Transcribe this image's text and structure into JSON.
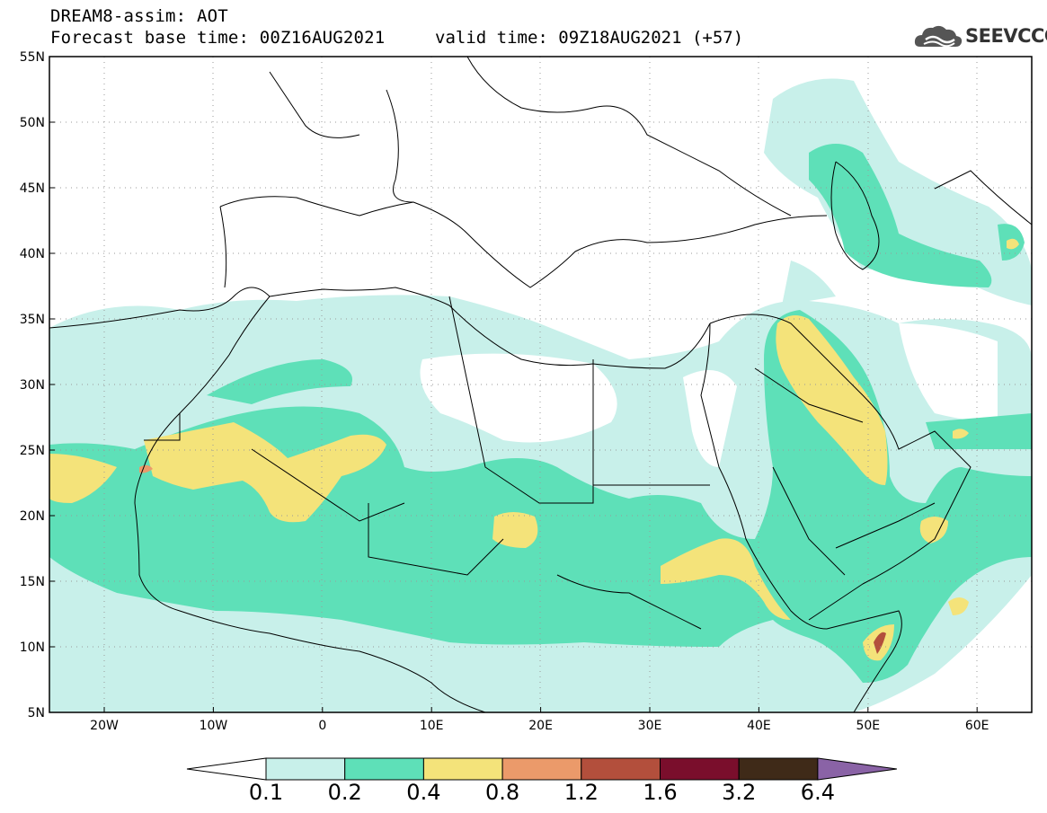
{
  "header": {
    "title_line1": "DREAM8-assim: AOT",
    "title_line2": "Forecast base time: 00Z16AUG2021",
    "valid_time": "valid time: 09Z18AUG2021 (+57)",
    "logo_text": "SEEVCCC"
  },
  "map": {
    "lat_labels": [
      "55N",
      "50N",
      "45N",
      "40N",
      "35N",
      "30N",
      "25N",
      "20N",
      "15N",
      "10N",
      "5N"
    ],
    "lon_labels": [
      "20W",
      "10W",
      "0",
      "10E",
      "20E",
      "30E",
      "40E",
      "50E",
      "60E"
    ],
    "colors": {
      "ocean_bg": "#ffffff",
      "border": "#000000",
      "grid": "#888888"
    }
  },
  "colorbar": {
    "labels": [
      "0.1",
      "0.2",
      "0.4",
      "0.8",
      "1.2",
      "1.6",
      "3.2",
      "6.4"
    ],
    "colors": [
      "#ffffff",
      "#c8f0ea",
      "#5ee0b8",
      "#f4e37a",
      "#eb9a6a",
      "#b34f3c",
      "#7a0e2c",
      "#3f2a18",
      "#8a63a6"
    ]
  }
}
